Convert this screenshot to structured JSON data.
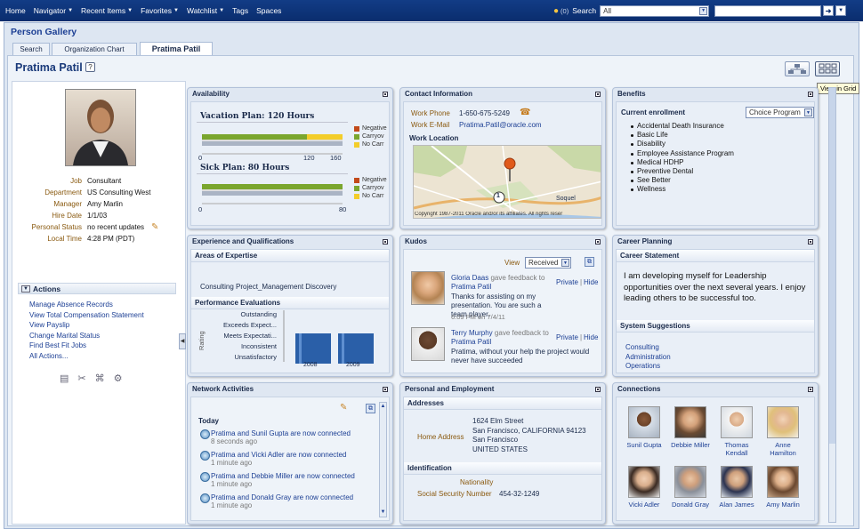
{
  "topnav": {
    "items": [
      {
        "label": "Home",
        "caret": false
      },
      {
        "label": "Navigator",
        "caret": true
      },
      {
        "label": "Recent Items",
        "caret": true
      },
      {
        "label": "Favorites",
        "caret": true
      },
      {
        "label": "Watchlist",
        "caret": true
      },
      {
        "label": "Tags",
        "caret": false
      },
      {
        "label": "Spaces",
        "caret": false
      }
    ],
    "watch_count": "(0)",
    "search_label": "Search",
    "search_scope": "All",
    "search_value": ""
  },
  "gallery_title": "Person Gallery",
  "tabs": [
    "Search",
    "Organization Chart",
    "Pratima Patil"
  ],
  "person_name": "Pratima Patil",
  "help_glyph": "?",
  "tooltip": "View in Grid",
  "profile": {
    "fields": [
      {
        "label": "Job",
        "value": "Consultant"
      },
      {
        "label": "Department",
        "value": "US Consulting West"
      },
      {
        "label": "Manager",
        "value": "Amy Marlin"
      },
      {
        "label": "Hire Date",
        "value": "1/1/03"
      },
      {
        "label": "Personal Status",
        "value": "no recent updates"
      },
      {
        "label": "Local Time",
        "value": "4:28 PM (PDT)"
      }
    ]
  },
  "actions": {
    "title": "Actions",
    "items": [
      "Manage Absence Records",
      "View Total Compensation Statement",
      "View Payslip",
      "Change Marital Status",
      "Find Best Fit Jobs",
      "All Actions..."
    ]
  },
  "availability": {
    "title": "Availability",
    "vacation_title": "Vacation Plan: 120 Hours",
    "vacation_ticks": [
      "0",
      "120",
      "160"
    ],
    "sick_title": "Sick Plan: 80 Hours",
    "sick_ticks": [
      "0",
      "80"
    ],
    "legend": [
      "Negative",
      "Carryov",
      "No Carr"
    ],
    "colors": {
      "negative": "#c24a1a",
      "carryover": "#7aa62e",
      "no_carry": "#f3cd2a"
    }
  },
  "contact": {
    "title": "Contact Information",
    "work_phone_label": "Work Phone",
    "work_phone": "1-650-675-5249",
    "work_email_label": "Work E-Mail",
    "work_email": "Pratima.Patil@oracle.com",
    "work_location_label": "Work Location",
    "map_pin": "1",
    "map_place": "Soquel",
    "map_copyright": "Copyright 1987-2011 Oracle and/or its affiliates. All rights reser"
  },
  "benefits": {
    "title": "Benefits",
    "enrollment_label": "Current enrollment",
    "select_value": "Choice Program",
    "items": [
      "Accidental Death Insurance",
      "Basic Life",
      "Disability",
      "Employee Assistance Program",
      "Medical HDHP",
      "Preventive Dental",
      "See Better",
      "Wellness"
    ]
  },
  "experience": {
    "title": "Experience and Qualifications",
    "expertise_label": "Areas of Expertise",
    "expertise": "Consulting Project_Management Discovery",
    "perf_label": "Performance Evaluations",
    "y_axis_label": "Rating",
    "ratings": [
      "Outstanding",
      "Exceeds Expect...",
      "Meets Expectati...",
      "Inconsistent",
      "Unsatisfactory"
    ],
    "years": [
      "2008",
      "2009"
    ]
  },
  "kudos": {
    "title": "Kudos",
    "view_label": "View",
    "view_value": "Received",
    "entries": [
      {
        "name": "Gloria Daas",
        "action": "gave feedback to",
        "target": "Pratima Patil",
        "message": "Thanks for assisting on my presentation. You are such a team player.",
        "time": "6:09 PM on 7/4/11",
        "privacy": "Private",
        "hide": "Hide"
      },
      {
        "name": "Terry Murphy",
        "action": "gave feedback to",
        "target": "Pratima Patil",
        "message": "Pratima, without your help the project would never have succeeded",
        "time": "",
        "privacy": "Private",
        "hide": "Hide"
      }
    ]
  },
  "career": {
    "title": "Career Planning",
    "statement_label": "Career Statement",
    "statement": "I am developing myself for Leadership opportunities over the next several years. I enjoy leading others to be successful too.",
    "suggestions_label": "System Suggestions",
    "suggestions": [
      "Consulting",
      "Administration",
      "Operations"
    ]
  },
  "network": {
    "title": "Network Activities",
    "today_label": "Today",
    "items": [
      {
        "text": "Pratima and Sunil Gupta are now connected",
        "time": "8 seconds ago"
      },
      {
        "text": "Pratima and Vicki Adler are now connected",
        "time": "1 minute ago"
      },
      {
        "text": "Pratima and Debbie Miller are now connected",
        "time": "1 minute ago"
      },
      {
        "text": "Pratima and Donald Gray are now connected",
        "time": "1 minute ago"
      }
    ]
  },
  "personal": {
    "title": "Personal and Employment",
    "addresses_label": "Addresses",
    "home_address_label": "Home Address",
    "address_lines": [
      "1624 Elm Street",
      "San Francisco, CALIFORNIA 94123",
      "San Francisco",
      "UNITED STATES"
    ],
    "identification_label": "Identification",
    "nationality_label": "Nationality",
    "ssn_label": "Social Security Number",
    "ssn": "454-32-1249"
  },
  "connections": {
    "title": "Connections",
    "people": [
      {
        "name": "Sunil Gupta",
        "line2": ""
      },
      {
        "name": "Debbie Miller",
        "line2": ""
      },
      {
        "name": "Thomas",
        "line2": "Kendall"
      },
      {
        "name": "Anne",
        "line2": "Hamilton"
      },
      {
        "name": "Vicki Adler",
        "line2": ""
      },
      {
        "name": "Donald Gray",
        "line2": ""
      },
      {
        "name": "Alan James",
        "line2": ""
      },
      {
        "name": "Amy Marlin",
        "line2": ""
      }
    ]
  }
}
